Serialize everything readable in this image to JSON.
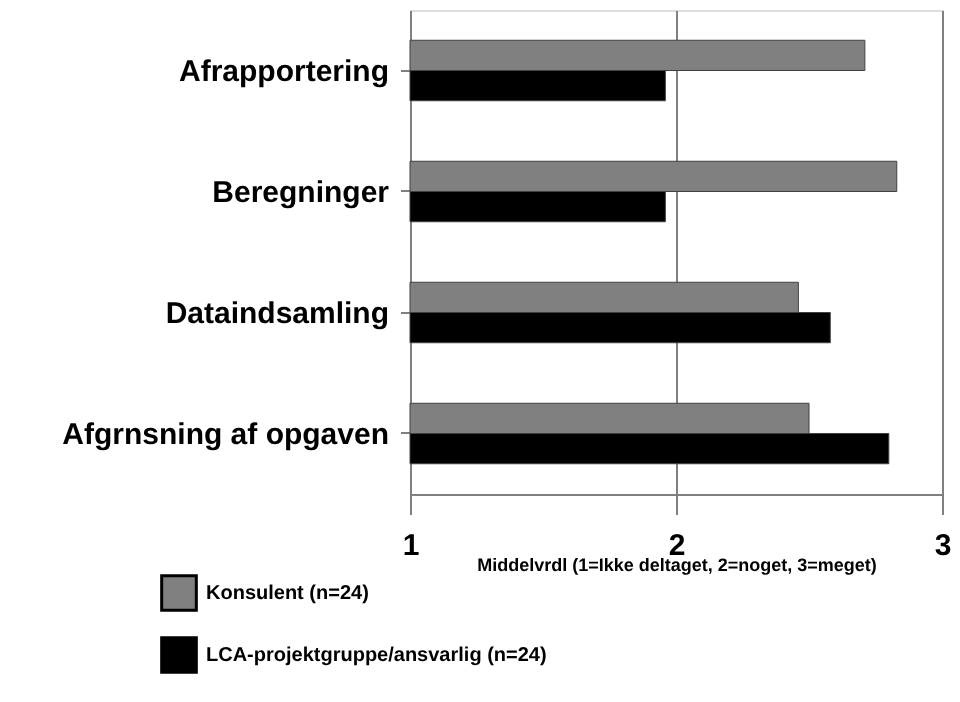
{
  "chart_data": {
    "type": "bar",
    "orientation": "horizontal",
    "xlabel": "Middelvrdl (1=Ikke deltaget, 2=noget, 3=meget)",
    "categories": [
      "Afrapportering",
      "Beregninger",
      "Dataindsamling",
      "Afgrnsning af opgaven"
    ],
    "series": [
      {
        "name": "Konsulent (n=24)",
        "color": "#808080",
        "values": [
          2.71,
          2.83,
          2.46,
          2.5
        ]
      },
      {
        "name": "LCA-projektgruppe/ansvarlig (n=24)",
        "color": "#000000",
        "values": [
          1.96,
          1.96,
          2.58,
          2.8
        ]
      }
    ],
    "xlim": [
      1,
      3
    ],
    "xticks": [
      1,
      2,
      3
    ],
    "grid": "x",
    "legend": "bottom left"
  }
}
